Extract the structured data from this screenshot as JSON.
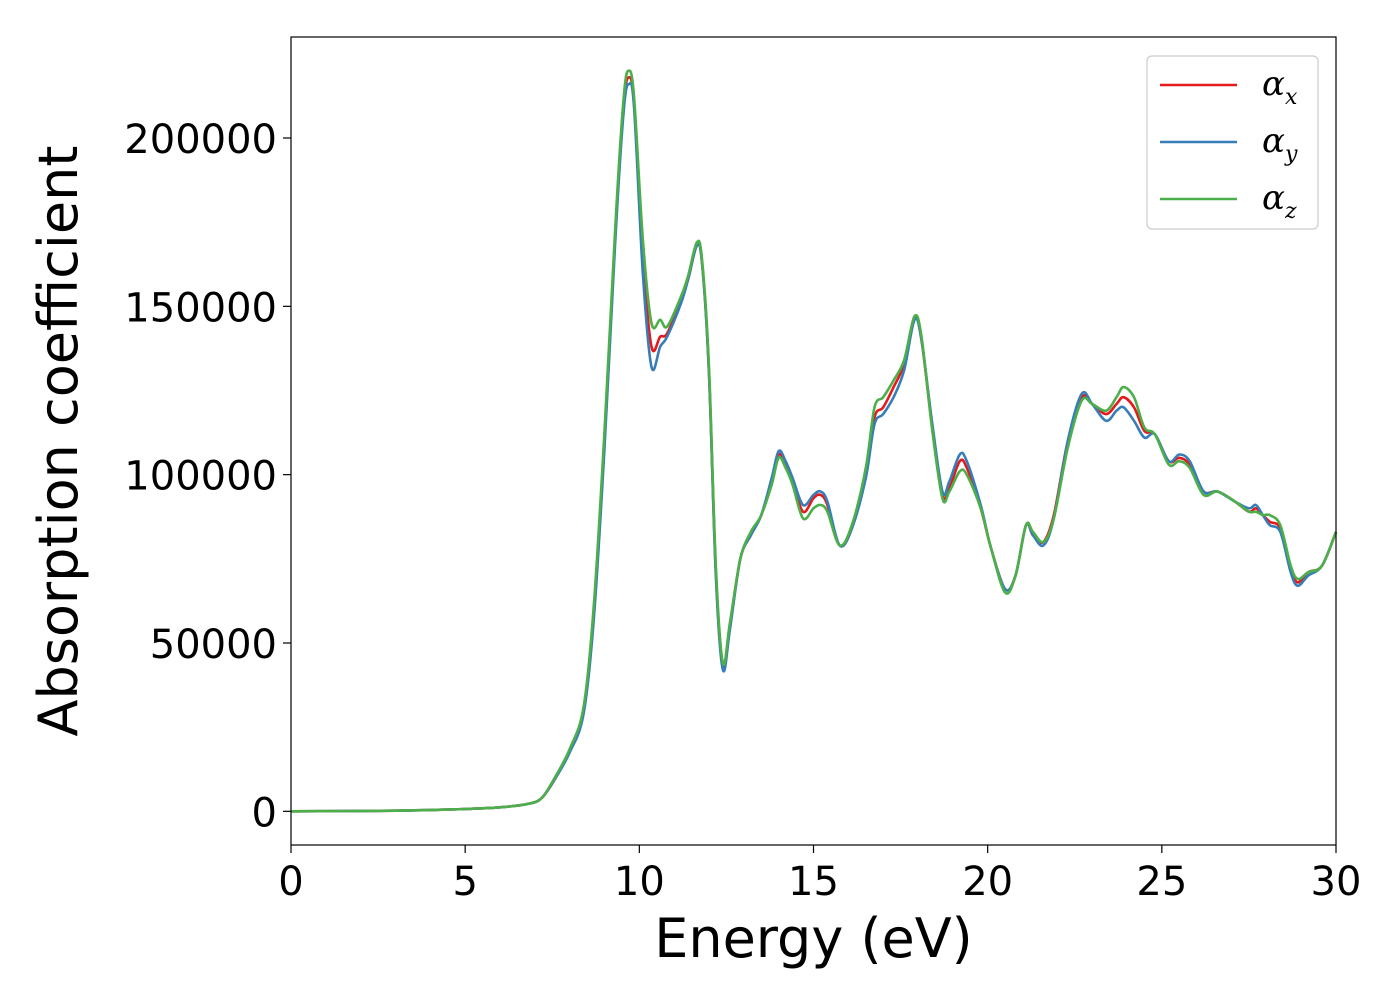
{
  "chart_data": {
    "type": "line",
    "title": "",
    "xlabel": "Energy (eV)",
    "ylabel": "Absorption coefficient",
    "xlim": [
      0,
      30
    ],
    "ylim": [
      -10000,
      230000
    ],
    "xticks": [
      0,
      5,
      10,
      15,
      20,
      25,
      30
    ],
    "yticks": [
      0,
      50000,
      100000,
      150000,
      200000
    ],
    "xtick_labels": [
      "0",
      "5",
      "10",
      "15",
      "20",
      "25",
      "30"
    ],
    "ytick_labels": [
      "0",
      "50000",
      "100000",
      "150000",
      "200000"
    ],
    "grid": false,
    "legend_position": "top-right",
    "series": [
      {
        "name": "α",
        "subscript": "x",
        "color": "#e41a1c",
        "points": [
          [
            0,
            0
          ],
          [
            3,
            200
          ],
          [
            5,
            700
          ],
          [
            6,
            1200
          ],
          [
            6.8,
            2200
          ],
          [
            7.2,
            4000
          ],
          [
            7.6,
            10000
          ],
          [
            8,
            18000
          ],
          [
            8.4,
            30000
          ],
          [
            8.7,
            60000
          ],
          [
            9,
            110000
          ],
          [
            9.3,
            170000
          ],
          [
            9.55,
            210000
          ],
          [
            9.7,
            218000
          ],
          [
            9.85,
            210000
          ],
          [
            10.1,
            165000
          ],
          [
            10.35,
            138000
          ],
          [
            10.6,
            141000
          ],
          [
            10.8,
            142000
          ],
          [
            11.2,
            152000
          ],
          [
            11.4,
            158000
          ],
          [
            11.65,
            168000
          ],
          [
            11.8,
            163000
          ],
          [
            12.0,
            130000
          ],
          [
            12.2,
            70000
          ],
          [
            12.4,
            43000
          ],
          [
            12.6,
            55000
          ],
          [
            12.9,
            75000
          ],
          [
            13.2,
            82000
          ],
          [
            13.5,
            88000
          ],
          [
            13.8,
            98000
          ],
          [
            14.0,
            106000
          ],
          [
            14.2,
            103000
          ],
          [
            14.4,
            98000
          ],
          [
            14.7,
            89000
          ],
          [
            15.0,
            93000
          ],
          [
            15.2,
            94000
          ],
          [
            15.4,
            91000
          ],
          [
            15.75,
            79000
          ],
          [
            16.1,
            84000
          ],
          [
            16.5,
            100000
          ],
          [
            16.75,
            117000
          ],
          [
            17.0,
            120000
          ],
          [
            17.3,
            126000
          ],
          [
            17.6,
            133000
          ],
          [
            17.9,
            147000
          ],
          [
            18.1,
            140000
          ],
          [
            18.4,
            115000
          ],
          [
            18.7,
            94000
          ],
          [
            18.9,
            96000
          ],
          [
            19.2,
            104000
          ],
          [
            19.4,
            102000
          ],
          [
            19.8,
            90000
          ],
          [
            20.1,
            78000
          ],
          [
            20.5,
            66000
          ],
          [
            20.8,
            70000
          ],
          [
            21.1,
            85000
          ],
          [
            21.3,
            82000
          ],
          [
            21.6,
            80000
          ],
          [
            21.9,
            88000
          ],
          [
            22.3,
            110000
          ],
          [
            22.7,
            123000
          ],
          [
            23.0,
            121000
          ],
          [
            23.4,
            118000
          ],
          [
            23.7,
            121000
          ],
          [
            23.9,
            123000
          ],
          [
            24.2,
            120000
          ],
          [
            24.5,
            113000
          ],
          [
            24.8,
            112000
          ],
          [
            25.2,
            104000
          ],
          [
            25.5,
            105000
          ],
          [
            25.8,
            103000
          ],
          [
            26.2,
            95000
          ],
          [
            26.6,
            95000
          ],
          [
            27.1,
            92000
          ],
          [
            27.5,
            89000
          ],
          [
            27.7,
            90000
          ],
          [
            27.9,
            88000
          ],
          [
            28.1,
            86000
          ],
          [
            28.4,
            84000
          ],
          [
            28.7,
            72000
          ],
          [
            28.9,
            68000
          ],
          [
            29.2,
            71000
          ],
          [
            29.6,
            73000
          ],
          [
            30.0,
            83000
          ]
        ]
      },
      {
        "name": "α",
        "subscript": "y",
        "color": "#377eb8",
        "points": [
          [
            0,
            0
          ],
          [
            3,
            200
          ],
          [
            5,
            700
          ],
          [
            6,
            1200
          ],
          [
            6.8,
            2200
          ],
          [
            7.2,
            4000
          ],
          [
            7.6,
            10000
          ],
          [
            8,
            17500
          ],
          [
            8.4,
            29000
          ],
          [
            8.7,
            58000
          ],
          [
            9,
            108000
          ],
          [
            9.3,
            168000
          ],
          [
            9.55,
            208000
          ],
          [
            9.7,
            216000
          ],
          [
            9.85,
            209000
          ],
          [
            10.1,
            160000
          ],
          [
            10.35,
            132000
          ],
          [
            10.6,
            138000
          ],
          [
            10.8,
            141000
          ],
          [
            11.2,
            151000
          ],
          [
            11.4,
            158000
          ],
          [
            11.65,
            168000
          ],
          [
            11.8,
            163000
          ],
          [
            12.0,
            130000
          ],
          [
            12.2,
            69000
          ],
          [
            12.4,
            42000
          ],
          [
            12.6,
            54000
          ],
          [
            12.9,
            75000
          ],
          [
            13.2,
            82000
          ],
          [
            13.5,
            88000
          ],
          [
            13.8,
            99000
          ],
          [
            14.0,
            107000
          ],
          [
            14.2,
            104000
          ],
          [
            14.4,
            99000
          ],
          [
            14.7,
            91000
          ],
          [
            15.0,
            94000
          ],
          [
            15.2,
            95000
          ],
          [
            15.4,
            92000
          ],
          [
            15.75,
            79000
          ],
          [
            16.1,
            84000
          ],
          [
            16.5,
            99000
          ],
          [
            16.75,
            115000
          ],
          [
            17.0,
            118000
          ],
          [
            17.3,
            123000
          ],
          [
            17.6,
            131000
          ],
          [
            17.9,
            146000
          ],
          [
            18.1,
            140000
          ],
          [
            18.4,
            116000
          ],
          [
            18.7,
            95000
          ],
          [
            18.9,
            98000
          ],
          [
            19.2,
            106000
          ],
          [
            19.4,
            104000
          ],
          [
            19.8,
            91000
          ],
          [
            20.1,
            78000
          ],
          [
            20.5,
            66000
          ],
          [
            20.8,
            70000
          ],
          [
            21.1,
            85000
          ],
          [
            21.3,
            82000
          ],
          [
            21.6,
            79000
          ],
          [
            21.9,
            87000
          ],
          [
            22.3,
            110000
          ],
          [
            22.7,
            124000
          ],
          [
            23.0,
            121000
          ],
          [
            23.4,
            116000
          ],
          [
            23.7,
            119000
          ],
          [
            23.9,
            120000
          ],
          [
            24.2,
            116000
          ],
          [
            24.5,
            111000
          ],
          [
            24.8,
            112000
          ],
          [
            25.2,
            104000
          ],
          [
            25.5,
            106000
          ],
          [
            25.8,
            104000
          ],
          [
            26.2,
            95000
          ],
          [
            26.6,
            95000
          ],
          [
            27.1,
            92000
          ],
          [
            27.5,
            90000
          ],
          [
            27.7,
            91000
          ],
          [
            27.9,
            88000
          ],
          [
            28.1,
            85000
          ],
          [
            28.4,
            83000
          ],
          [
            28.7,
            71000
          ],
          [
            28.9,
            67000
          ],
          [
            29.2,
            70000
          ],
          [
            29.6,
            73000
          ],
          [
            30.0,
            83000
          ]
        ]
      },
      {
        "name": "α",
        "subscript": "z",
        "color": "#4daf4a",
        "points": [
          [
            0,
            0
          ],
          [
            3,
            200
          ],
          [
            5,
            700
          ],
          [
            6,
            1200
          ],
          [
            6.8,
            2200
          ],
          [
            7.2,
            4000
          ],
          [
            7.6,
            10500
          ],
          [
            8,
            18500
          ],
          [
            8.4,
            31000
          ],
          [
            8.7,
            62000
          ],
          [
            9,
            113000
          ],
          [
            9.3,
            172000
          ],
          [
            9.55,
            212000
          ],
          [
            9.7,
            220000
          ],
          [
            9.85,
            212000
          ],
          [
            10.1,
            170000
          ],
          [
            10.35,
            145000
          ],
          [
            10.6,
            146000
          ],
          [
            10.8,
            144000
          ],
          [
            11.2,
            153000
          ],
          [
            11.4,
            159000
          ],
          [
            11.65,
            169000
          ],
          [
            11.8,
            164000
          ],
          [
            12.0,
            132000
          ],
          [
            12.2,
            72000
          ],
          [
            12.4,
            44000
          ],
          [
            12.6,
            56000
          ],
          [
            12.9,
            75000
          ],
          [
            13.2,
            83000
          ],
          [
            13.5,
            88000
          ],
          [
            13.8,
            97000
          ],
          [
            14.0,
            105000
          ],
          [
            14.2,
            102000
          ],
          [
            14.4,
            97000
          ],
          [
            14.7,
            87000
          ],
          [
            15.0,
            90000
          ],
          [
            15.2,
            91000
          ],
          [
            15.4,
            89000
          ],
          [
            15.75,
            79000
          ],
          [
            16.1,
            85000
          ],
          [
            16.5,
            102000
          ],
          [
            16.75,
            120000
          ],
          [
            17.0,
            123000
          ],
          [
            17.3,
            128000
          ],
          [
            17.6,
            134000
          ],
          [
            17.9,
            147000
          ],
          [
            18.1,
            141000
          ],
          [
            18.4,
            114000
          ],
          [
            18.7,
            93000
          ],
          [
            18.9,
            95000
          ],
          [
            19.2,
            101000
          ],
          [
            19.4,
            100000
          ],
          [
            19.8,
            90000
          ],
          [
            20.1,
            78000
          ],
          [
            20.5,
            65000
          ],
          [
            20.8,
            70000
          ],
          [
            21.1,
            85000
          ],
          [
            21.3,
            83000
          ],
          [
            21.6,
            80000
          ],
          [
            21.9,
            87000
          ],
          [
            22.3,
            108000
          ],
          [
            22.7,
            122000
          ],
          [
            23.0,
            121000
          ],
          [
            23.4,
            119000
          ],
          [
            23.7,
            123000
          ],
          [
            23.9,
            126000
          ],
          [
            24.2,
            123000
          ],
          [
            24.5,
            114000
          ],
          [
            24.8,
            112000
          ],
          [
            25.2,
            103000
          ],
          [
            25.5,
            104000
          ],
          [
            25.8,
            102000
          ],
          [
            26.2,
            94000
          ],
          [
            26.6,
            95000
          ],
          [
            27.1,
            92000
          ],
          [
            27.5,
            89000
          ],
          [
            27.7,
            89000
          ],
          [
            27.9,
            88000
          ],
          [
            28.1,
            88000
          ],
          [
            28.4,
            85000
          ],
          [
            28.7,
            73000
          ],
          [
            28.9,
            69000
          ],
          [
            29.2,
            71000
          ],
          [
            29.6,
            73000
          ],
          [
            30.0,
            83000
          ]
        ]
      }
    ]
  }
}
